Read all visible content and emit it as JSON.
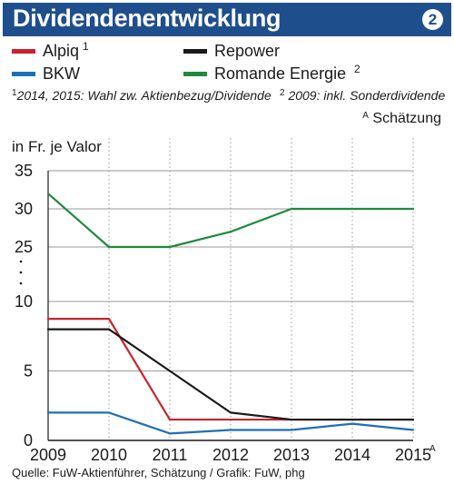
{
  "header": {
    "title": "Dividendenentwicklung",
    "badge": "2"
  },
  "legend": [
    {
      "label": "Alpiq",
      "sup": "1",
      "color": "#c8232c"
    },
    {
      "label": "Repower",
      "sup": "",
      "color": "#1a1a1a"
    },
    {
      "label": "BKW",
      "sup": "",
      "color": "#1f6fb5"
    },
    {
      "label": "Romande Energie",
      "sup": "2",
      "color": "#1e8a3c"
    }
  ],
  "footnotes": {
    "note1_mark": "1",
    "note1_text": "2014, 2015: Wahl zw. Aktienbezug/Dividende",
    "note2_mark": "2",
    "note2_text": "2009: inkl. Sonderdividende",
    "noteA_mark": "A",
    "noteA_text": "Schätzung"
  },
  "source": "Quelle: FuW-Aktienführer, Schätzung / Grafik: FuW, phg",
  "chart_data": {
    "type": "line",
    "ylabel": "in Fr. je Valor",
    "x": [
      "2009",
      "2010",
      "2011",
      "2012",
      "2013",
      "2014",
      "2015"
    ],
    "x_tick_labels": [
      "2009",
      "2010",
      "2011",
      "2012",
      "2013",
      "2014",
      "2015"
    ],
    "x_last_tick_mark": "A",
    "y_axis": {
      "broken": true,
      "lower_segment": [
        0,
        10
      ],
      "upper_segment": [
        25,
        35
      ],
      "lower_ticks": [
        "0",
        "5",
        "10"
      ],
      "upper_ticks": [
        "25",
        "30",
        "35"
      ]
    },
    "grid": "horizontal",
    "legend_position": "top",
    "series": [
      {
        "name": "Alpiq",
        "color": "#c8232c",
        "values": [
          8.75,
          8.75,
          1.5,
          1.5,
          1.5,
          1.5,
          1.5
        ]
      },
      {
        "name": "Repower",
        "color": "#1a1a1a",
        "values": [
          8.0,
          8.0,
          5.0,
          2.0,
          1.5,
          1.5,
          1.5
        ]
      },
      {
        "name": "BKW",
        "color": "#1f6fb5",
        "values": [
          2.0,
          2.0,
          0.5,
          0.75,
          0.75,
          1.2,
          0.75
        ]
      },
      {
        "name": "Romande Energie",
        "color": "#1e8a3c",
        "values": [
          32,
          25,
          25,
          27,
          30,
          30,
          30
        ]
      }
    ]
  }
}
